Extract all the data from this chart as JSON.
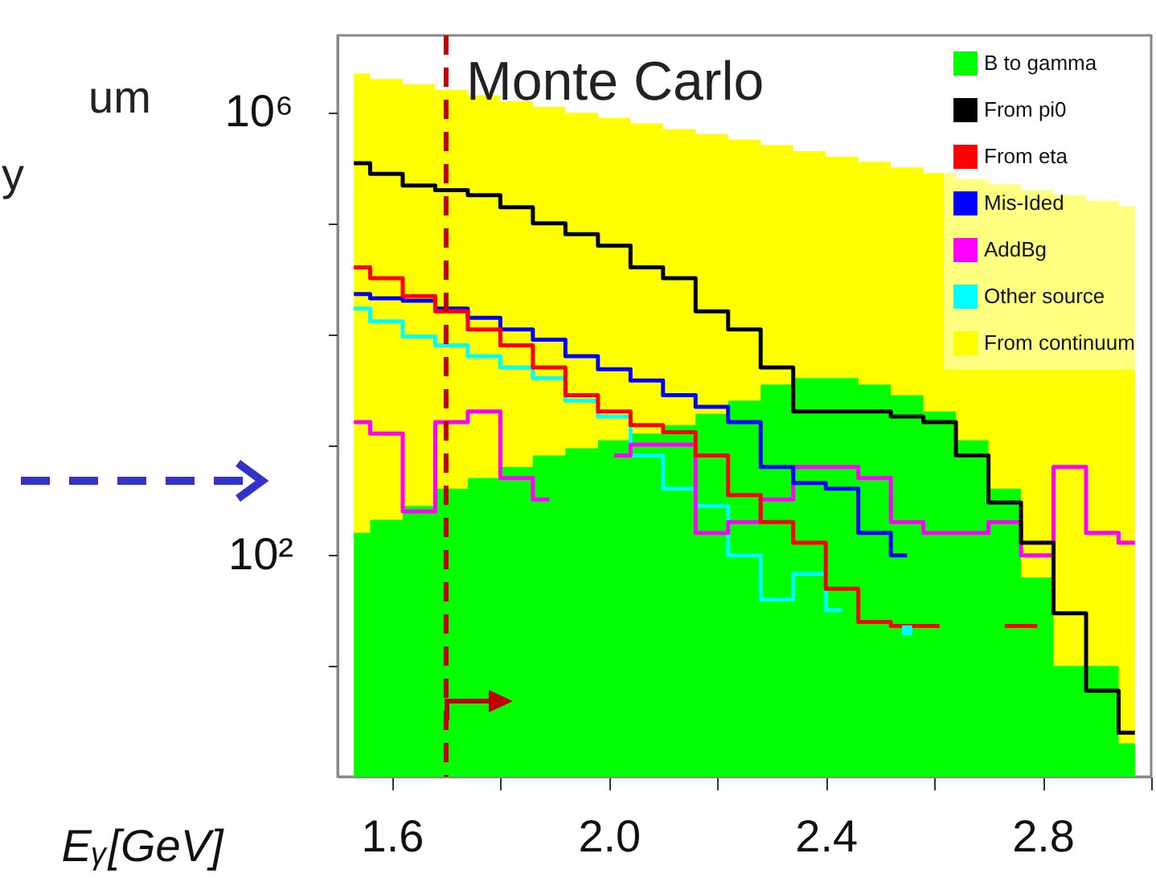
{
  "chart_data": {
    "type": "line",
    "xlabel": "Eᵧ[GeV]",
    "annotations": [
      "Monte Carlo",
      "um",
      "y"
    ],
    "x": [
      1.53,
      1.59,
      1.65,
      1.71,
      1.77,
      1.83,
      1.89,
      1.95,
      2.01,
      2.07,
      2.13,
      2.19,
      2.25,
      2.31,
      2.37,
      2.43,
      2.49,
      2.55,
      2.61,
      2.67,
      2.73,
      2.79,
      2.85,
      2.91,
      2.97
    ],
    "series": [
      {
        "name": "B to gamma",
        "type": "area",
        "color": "#00ff00",
        "values": [
          160,
          210,
          280,
          400,
          500,
          630,
          800,
          930,
          1100,
          1260,
          1500,
          1900,
          2500,
          3500,
          4000,
          4000,
          3500,
          2800,
          2000,
          1100,
          400,
          63,
          10,
          10,
          2
        ]
      },
      {
        "name": "From pi0",
        "type": "step",
        "color": "#000000",
        "values": [
          350000,
          280000,
          220000,
          200000,
          180000,
          140000,
          100000,
          80000,
          63000,
          40000,
          32000,
          16000,
          11000,
          5000,
          2000,
          2000,
          2000,
          1800,
          1600,
          800,
          300,
          130,
          30,
          6,
          2.5
        ]
      },
      {
        "name": "From eta",
        "type": "step",
        "color": "#ff0000",
        "values": [
          40000,
          32000,
          22000,
          16000,
          11000,
          7900,
          5000,
          2800,
          2000,
          1500,
          1300,
          800,
          350,
          200,
          130,
          50,
          25,
          23,
          23,
          null,
          23,
          23,
          null,
          null,
          null
        ]
      },
      {
        "name": "Mis-Ided",
        "type": "step",
        "color": "#0000ff",
        "values": [
          23000,
          21000,
          20000,
          17000,
          14000,
          11000,
          8900,
          6300,
          4800,
          3800,
          2800,
          2200,
          1600,
          630,
          450,
          400,
          160,
          100,
          null,
          null,
          null,
          null,
          null,
          null,
          null
        ]
      },
      {
        "name": "AddBg",
        "type": "step",
        "color": "#ff00ff",
        "values": [
          1600,
          1260,
          250,
          1600,
          2000,
          500,
          320,
          null,
          800,
          1000,
          1000,
          160,
          200,
          320,
          630,
          630,
          500,
          200,
          160,
          160,
          200,
          100,
          630,
          160,
          130
        ]
      },
      {
        "name": "Other source",
        "type": "step",
        "color": "#00ffff",
        "values": [
          17000,
          13000,
          9500,
          7900,
          6300,
          5000,
          4000,
          2500,
          1800,
          800,
          400,
          280,
          100,
          40,
          68,
          32,
          null,
          21,
          null,
          null,
          null,
          null,
          null,
          null,
          null
        ]
      },
      {
        "name": "From continuum",
        "type": "area",
        "color": "#ffff00",
        "values": [
          2260000,
          2020000,
          1800000,
          1600000,
          1430000,
          1270000,
          1130000,
          1000000,
          900000,
          800000,
          710000,
          640000,
          570000,
          510000,
          450000,
          400000,
          360000,
          320000,
          285000,
          250000,
          225000,
          200000,
          180000,
          160000,
          143000
        ]
      }
    ],
    "xlim": [
      1.5,
      3.0
    ],
    "xticks": [
      1.6,
      {
        "value": 1.8,
        "label": null
      },
      {
        "value": 2,
        "label": "2.0"
      },
      {
        "value": 2.2,
        "label": null
      },
      2.4,
      {
        "value": 2.6,
        "label": null
      },
      2.8,
      {
        "value": 3,
        "label": null
      }
    ],
    "ylim": [
      1,
      5000000
    ],
    "yticks": [
      {
        "value": 10,
        "label": null
      },
      {
        "value": 100,
        "label": "10²"
      },
      {
        "value": 1000,
        "label": null
      },
      {
        "value": 10000,
        "label": null
      },
      {
        "value": 100000,
        "label": null
      },
      {
        "value": 1000000,
        "label": "10⁶"
      }
    ],
    "log": true,
    "ref_lines": [
      {
        "axis": "x",
        "value": 1.7,
        "color": "#c00000",
        "line_style": "dashed"
      }
    ],
    "legend": "top right"
  }
}
